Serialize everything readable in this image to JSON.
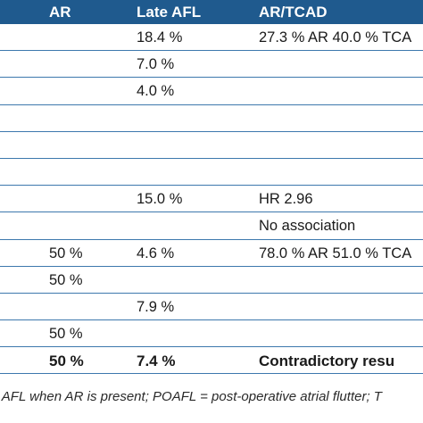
{
  "table": {
    "headers": [
      "AR",
      "Late AFL",
      "AR/TCAD"
    ],
    "rows": [
      {
        "ar": "",
        "late_afl": "18.4 %",
        "ar_tcad": "27.3 % AR 40.0 % TCA"
      },
      {
        "ar": "",
        "late_afl": "7.0 %",
        "ar_tcad": ""
      },
      {
        "ar": "",
        "late_afl": "4.0 %",
        "ar_tcad": ""
      },
      {
        "ar": "",
        "late_afl": "",
        "ar_tcad": ""
      },
      {
        "ar": "",
        "late_afl": "",
        "ar_tcad": ""
      },
      {
        "ar": "",
        "late_afl": "",
        "ar_tcad": ""
      },
      {
        "ar": "",
        "late_afl": "15.0 %",
        "ar_tcad": "HR 2.96"
      },
      {
        "ar": "",
        "late_afl": "",
        "ar_tcad": "No association"
      },
      {
        "ar": "50 %",
        "late_afl": "4.6 %",
        "ar_tcad": "78.0 % AR 51.0 % TCA"
      },
      {
        "ar": "50 %",
        "late_afl": "",
        "ar_tcad": ""
      },
      {
        "ar": "",
        "late_afl": "7.9 %",
        "ar_tcad": ""
      },
      {
        "ar": "50 %",
        "late_afl": "",
        "ar_tcad": ""
      }
    ],
    "total": {
      "ar": "50 %",
      "late_afl": "7.4 %",
      "ar_tcad": "Contradictory resu"
    }
  },
  "footnote": "f AFL when AR is present; POAFL = post-operative atrial flutter; T",
  "colors": {
    "header_bg": "#1f5a8e",
    "rule": "#3d78ad"
  }
}
